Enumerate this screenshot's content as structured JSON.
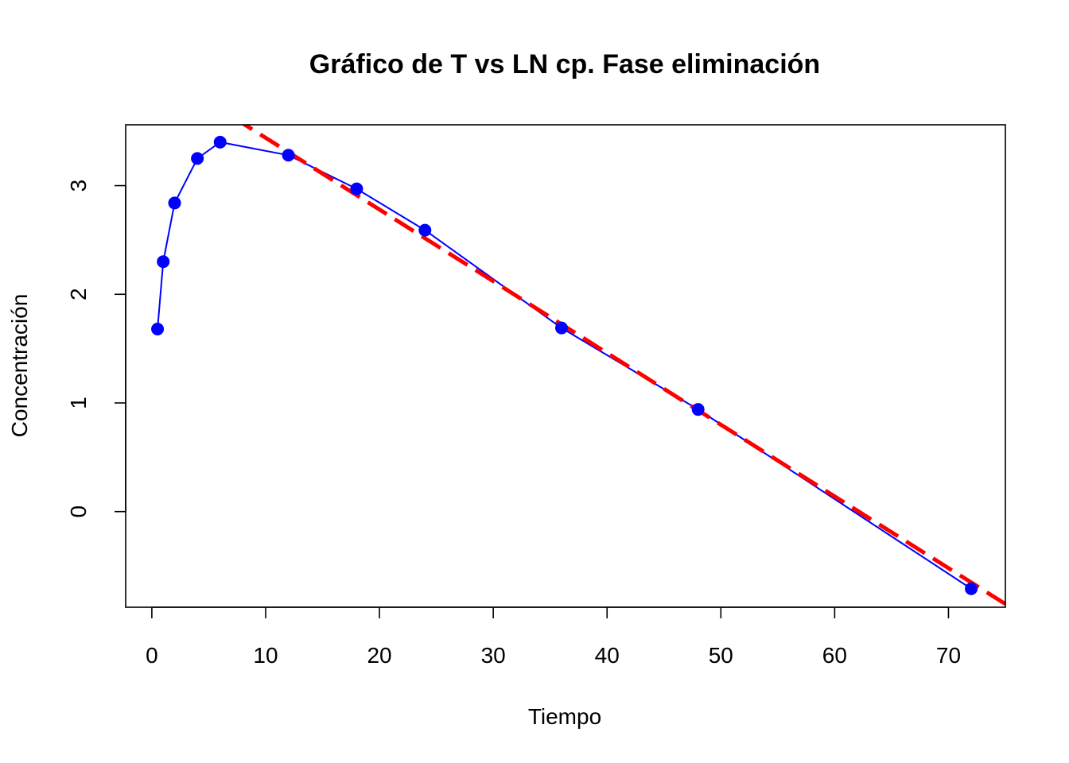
{
  "chart_data": {
    "type": "line",
    "title": "Gráfico de T vs LN cp. Fase eliminación",
    "xlabel": "Tiempo",
    "ylabel": "Concentración",
    "xlim": [
      -2.3,
      75
    ],
    "ylim": [
      -0.88,
      3.56
    ],
    "x_ticks": [
      0,
      10,
      20,
      30,
      40,
      50,
      60,
      70
    ],
    "y_ticks": [
      0,
      1,
      2,
      3
    ],
    "grid": false,
    "series": [
      {
        "color": "#0000ff",
        "style": "line-with-points",
        "x": [
          0.5,
          1,
          2,
          4,
          6,
          12,
          18,
          24,
          36,
          48,
          72
        ],
        "y": [
          1.68,
          2.3,
          2.84,
          3.25,
          3.4,
          3.28,
          2.97,
          2.59,
          1.69,
          0.94,
          -0.71
        ]
      }
    ],
    "regression_line": {
      "color": "#ff0000",
      "style": "dashed",
      "intercept": 4.1,
      "slope": -0.066
    }
  }
}
